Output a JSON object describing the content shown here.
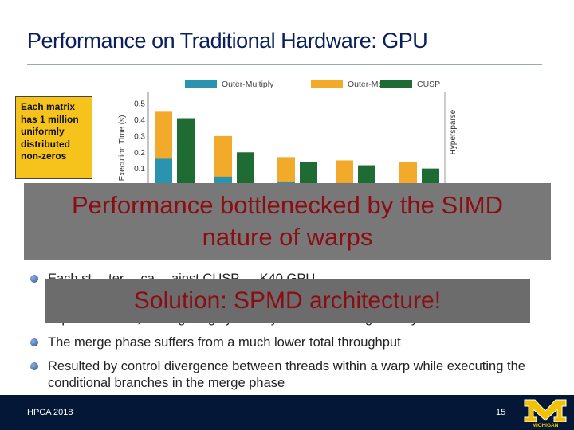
{
  "slide": {
    "title": "Performance on Traditional Hardware: GPU",
    "note_lines": [
      "Each matrix",
      "has 1 million",
      "uniformly",
      "distributed",
      "non-zeros"
    ],
    "overlay_main_lines": [
      "Performance bottlenecked by the SIMD",
      "nature of warps"
    ],
    "overlay_solution": "Solution: SPMD architecture!",
    "bullets": [
      "Each st… ter… ca… ainst CUSP … K40 GPU",
      "implementation, scaling roughly linearly with decreasing density",
      "The merge phase suffers from a much lower total throughput",
      "Resulted by control divergence between threads within a warp while executing the conditional branches in the merge phase"
    ],
    "footer_left": "HPCA 2018",
    "page_number": "15",
    "logo_text": "MICHIGAN"
  },
  "chart_data": {
    "type": "bar",
    "legend": [
      "Outer-Multiply",
      "Outer-Merge",
      "CUSP"
    ],
    "legend_placement": "top",
    "ylabel": "Execution Time (s)",
    "yticks": [
      "0.1",
      "0.2",
      "0.3",
      "0.4",
      "0.5"
    ],
    "ylim": [
      0,
      0.55
    ],
    "region_label": "Hypersparse",
    "colors": {
      "Outer-Multiply": "#2a93b0",
      "Outer-Merge": "#f2aa2a",
      "CUSP": "#1e6b33"
    },
    "groups": [
      {
        "Outer-Multiply": 0.16,
        "Outer-Merge": 0.45,
        "CUSP": 0.41
      },
      {
        "Outer-Multiply": 0.05,
        "Outer-Merge": 0.3,
        "CUSP": 0.2
      },
      {
        "Outer-Multiply": 0.02,
        "Outer-Merge": 0.17,
        "CUSP": 0.14
      },
      {
        "Outer-Multiply": 0.01,
        "Outer-Merge": 0.15,
        "CUSP": 0.12
      },
      {
        "Outer-Multiply": 0.0,
        "Outer-Merge": 0.14,
        "CUSP": 0.1
      }
    ]
  }
}
